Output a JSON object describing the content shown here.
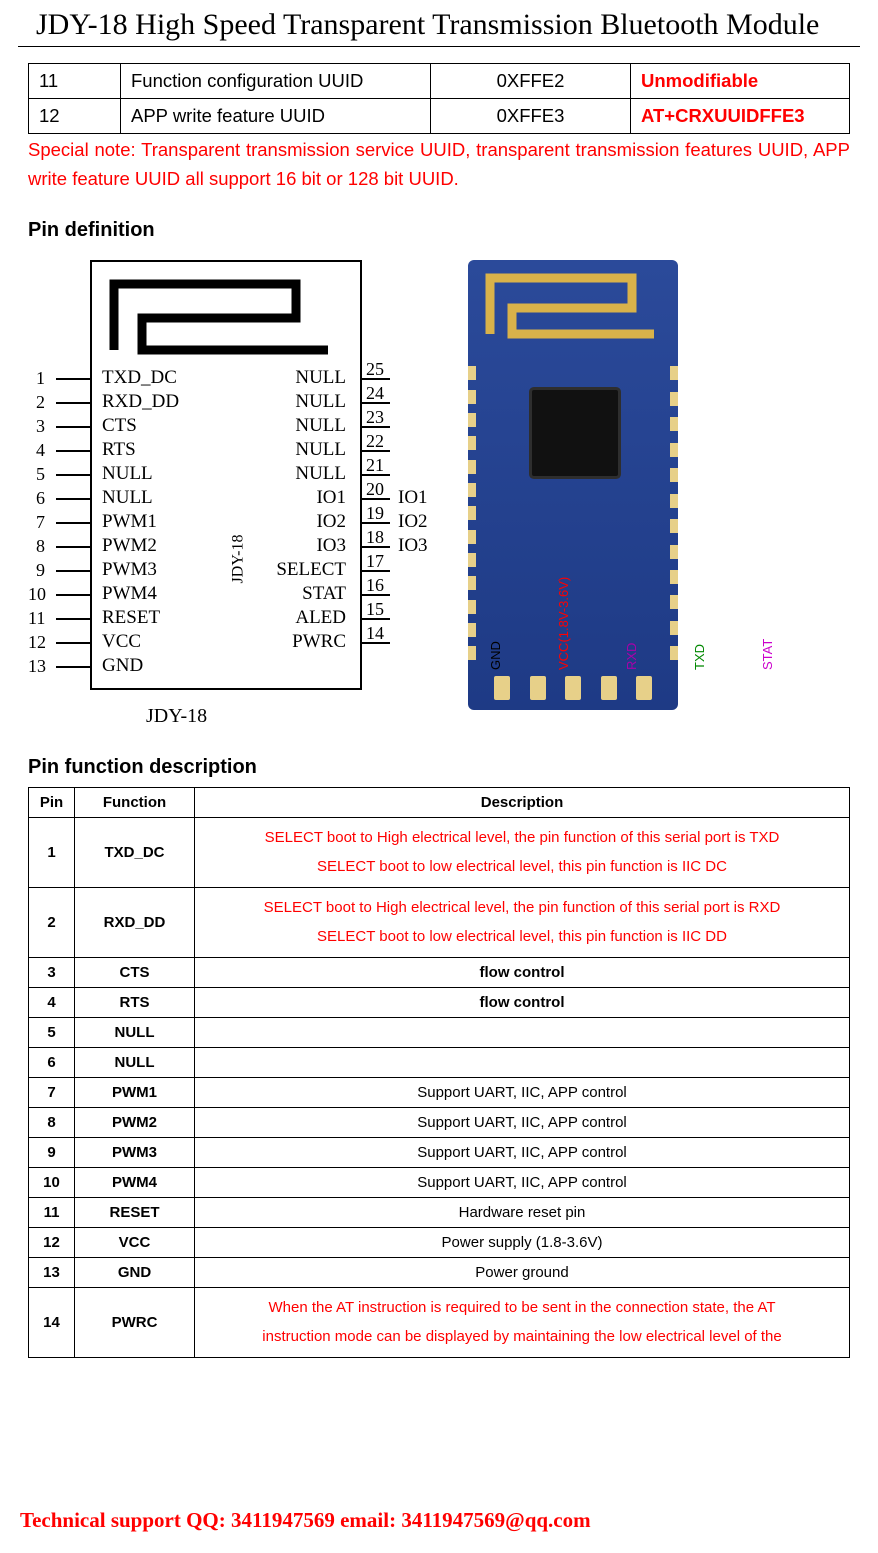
{
  "page_title": "JDY-18 High Speed Transparent Transmission Bluetooth Module",
  "table1": {
    "rows": [
      {
        "idx": "11",
        "label": "Function configuration UUID",
        "hex": "0XFFE2",
        "cmd": "Unmodifiable"
      },
      {
        "idx": "12",
        "label": "APP write feature UUID",
        "hex": "0XFFE3",
        "cmd": "AT+CRXUUIDFFE3"
      }
    ]
  },
  "note": "Special note: Transparent transmission service UUID, transparent transmission features UUID, APP write feature UUID all support 16 bit or 128 bit UUID.",
  "section_pin_def": "Pin definition",
  "pin_diagram": {
    "left_nums": [
      "1",
      "2",
      "3",
      "4",
      "5",
      "6",
      "7",
      "8",
      "9",
      "10",
      "11",
      "12",
      "13"
    ],
    "right_nums": [
      "25",
      "24",
      "23",
      "22",
      "21",
      "20",
      "19",
      "18",
      "17",
      "16",
      "15",
      "14"
    ],
    "left_labels": [
      "TXD_DC",
      "RXD_DD",
      "CTS",
      "RTS",
      "NULL",
      "NULL",
      "PWM1",
      "PWM2",
      "PWM3",
      "PWM4",
      "RESET",
      "VCC",
      "GND"
    ],
    "right_labels": [
      "NULL",
      "NULL",
      "NULL",
      "NULL",
      "NULL",
      "IO1",
      "IO2",
      "IO3",
      "SELECT",
      "STAT",
      "ALED",
      "PWRC"
    ],
    "io_ext": [
      "IO1",
      "IO2",
      "IO3"
    ],
    "vertical_text": "JDY-18",
    "footer": "JDY-18"
  },
  "module_labels": [
    {
      "text": "GND",
      "color": "#000000"
    },
    {
      "text": "VCC(1.8V-3.6V)",
      "color": "#ff0000"
    },
    {
      "text": "RXD",
      "color": "#aa00aa"
    },
    {
      "text": "TXD",
      "color": "#008800"
    },
    {
      "text": "STAT",
      "color": "#cc00cc"
    }
  ],
  "section_pin_func": "Pin function description",
  "table2": {
    "headers": [
      "Pin",
      "Function",
      "Description"
    ],
    "rows": [
      {
        "pin": "1",
        "fn": "TXD_DC",
        "desc_red": [
          "SELECT boot to High electrical level, the pin function of this serial port is TXD",
          "SELECT boot to low electrical level, this pin function is IIC DC"
        ],
        "desc_black": ""
      },
      {
        "pin": "2",
        "fn": "RXD_DD",
        "desc_red": [
          "SELECT boot to High electrical level, the pin function of this serial port is RXD",
          "SELECT boot to low electrical level, this pin function is IIC DD"
        ],
        "desc_black": ""
      },
      {
        "pin": "3",
        "fn": "CTS",
        "desc_red": [],
        "desc_black": "flow control",
        "bold": true
      },
      {
        "pin": "4",
        "fn": "RTS",
        "desc_red": [],
        "desc_black": "flow control",
        "bold": true
      },
      {
        "pin": "5",
        "fn": "NULL",
        "desc_red": [],
        "desc_black": ""
      },
      {
        "pin": "6",
        "fn": "NULL",
        "desc_red": [],
        "desc_black": ""
      },
      {
        "pin": "7",
        "fn": "PWM1",
        "desc_red": [],
        "desc_black": "Support UART, IIC, APP control"
      },
      {
        "pin": "8",
        "fn": "PWM2",
        "desc_red": [],
        "desc_black": "Support UART, IIC, APP control"
      },
      {
        "pin": "9",
        "fn": "PWM3",
        "desc_red": [],
        "desc_black": "Support UART, IIC, APP control"
      },
      {
        "pin": "10",
        "fn": "PWM4",
        "desc_red": [],
        "desc_black": "Support UART, IIC, APP control"
      },
      {
        "pin": "11",
        "fn": "RESET",
        "desc_red": [],
        "desc_black": "Hardware reset pin"
      },
      {
        "pin": "12",
        "fn": "VCC",
        "desc_red": [],
        "desc_black": "Power supply (1.8-3.6V)"
      },
      {
        "pin": "13",
        "fn": "GND",
        "desc_red": [],
        "desc_black": "Power ground"
      },
      {
        "pin": "14",
        "fn": "PWRC",
        "desc_red": [
          "When the AT instruction is required to be sent in the connection state, the AT",
          "instruction mode can be displayed by maintaining the low electrical level of the"
        ],
        "desc_black": ""
      }
    ]
  },
  "footer": "Technical support QQ: 3411947569 email: 3411947569@qq.com",
  "colors": {
    "red": "#ff0000",
    "black": "#000000"
  }
}
